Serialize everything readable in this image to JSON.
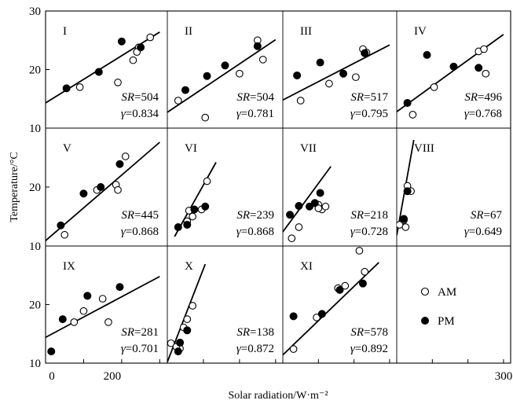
{
  "chart_data": {
    "type": "scatter",
    "xlabel": "Solar radiation/W·m⁻²",
    "ylabel": "Temperature/°C",
    "xlim": [
      0,
      320
    ],
    "ylim": [
      10,
      30
    ],
    "x_ticks": [
      "0",
      "200",
      "300"
    ],
    "legend": {
      "position": "bottom-right panel",
      "entries": [
        {
          "label": "AM",
          "marker": "open circle"
        },
        {
          "label": "PM",
          "marker": "filled circle"
        }
      ]
    },
    "panels": [
      {
        "label": "I",
        "y_ticks": [
          "30",
          "20",
          "10"
        ],
        "sr_key": "SR",
        "sr_value": "504",
        "r_key": "γ",
        "r_value": "0.834",
        "line": [
          [
            0,
            14.3
          ],
          [
            300,
            26.4
          ]
        ],
        "am": [
          [
            90,
            17.0
          ],
          [
            190,
            17.8
          ],
          [
            230,
            21.6
          ],
          [
            245,
            23.8
          ],
          [
            275,
            25.5
          ],
          [
            240,
            23.0
          ]
        ],
        "pm": [
          [
            55,
            16.8
          ],
          [
            140,
            19.6
          ],
          [
            200,
            24.8
          ],
          [
            250,
            23.8
          ]
        ]
      },
      {
        "label": "II",
        "y_ticks": [],
        "sr_key": "SR",
        "sr_value": "504",
        "r_key": "γ",
        "r_value": "0.781",
        "line": [
          [
            0,
            12.7
          ],
          [
            300,
            25.1
          ]
        ],
        "am": [
          [
            30,
            14.7
          ],
          [
            105,
            11.8
          ],
          [
            200,
            19.3
          ],
          [
            250,
            25.0
          ],
          [
            265,
            21.7
          ]
        ],
        "pm": [
          [
            50,
            16.5
          ],
          [
            110,
            18.9
          ],
          [
            160,
            20.7
          ],
          [
            250,
            24.0
          ]
        ]
      },
      {
        "label": "III",
        "y_ticks": [],
        "sr_key": "SR",
        "sr_value": "517",
        "r_key": "γ",
        "r_value": "0.795",
        "line": [
          [
            0,
            14.8
          ],
          [
            300,
            24.2
          ]
        ],
        "am": [
          [
            50,
            14.7
          ],
          [
            130,
            17.6
          ],
          [
            205,
            18.7
          ],
          [
            225,
            23.5
          ],
          [
            235,
            22.9
          ]
        ],
        "pm": [
          [
            40,
            19.0
          ],
          [
            105,
            21.2
          ],
          [
            170,
            19.3
          ],
          [
            230,
            22.8
          ]
        ]
      },
      {
        "label": "IV",
        "y_ticks": [],
        "sr_key": "SR",
        "sr_value": "496",
        "r_key": "γ",
        "r_value": "0.768",
        "line": [
          [
            0,
            12.8
          ],
          [
            300,
            26.0
          ]
        ],
        "am": [
          [
            45,
            12.3
          ],
          [
            105,
            17.0
          ],
          [
            230,
            23.1
          ],
          [
            245,
            23.5
          ],
          [
            250,
            19.3
          ]
        ],
        "pm": [
          [
            30,
            14.3
          ],
          [
            85,
            22.5
          ],
          [
            160,
            20.5
          ],
          [
            230,
            20.3
          ]
        ]
      },
      {
        "label": "V",
        "y_ticks": [
          "20",
          "10"
        ],
        "sr_key": "SR",
        "sr_value": "445",
        "r_key": "γ",
        "r_value": "0.868",
        "line": [
          [
            0,
            10.9
          ],
          [
            300,
            27.6
          ]
        ],
        "am": [
          [
            50,
            11.9
          ],
          [
            135,
            19.5
          ],
          [
            185,
            20.4
          ],
          [
            210,
            25.2
          ],
          [
            190,
            19.5
          ]
        ],
        "pm": [
          [
            40,
            13.5
          ],
          [
            100,
            18.9
          ],
          [
            145,
            20.0
          ],
          [
            195,
            23.9
          ]
        ]
      },
      {
        "label": "VI",
        "y_ticks": [],
        "sr_key": "SR",
        "sr_value": "239",
        "r_key": "γ",
        "r_value": "0.868",
        "line": [
          [
            20,
            11.6
          ],
          [
            135,
            24.2
          ]
        ],
        "am": [
          [
            55,
            14.2
          ],
          [
            60,
            16.0
          ],
          [
            95,
            16.2
          ],
          [
            110,
            21.0
          ],
          [
            70,
            15.0
          ]
        ],
        "pm": [
          [
            30,
            13.2
          ],
          [
            55,
            13.6
          ],
          [
            75,
            16.2
          ],
          [
            105,
            16.7
          ]
        ]
      },
      {
        "label": "VII",
        "y_ticks": [],
        "sr_key": "SR",
        "sr_value": "218",
        "r_key": "γ",
        "r_value": "0.728",
        "line": [
          [
            0,
            12.4
          ],
          [
            135,
            23.5
          ]
        ],
        "am": [
          [
            25,
            11.3
          ],
          [
            45,
            13.2
          ],
          [
            100,
            17.0
          ],
          [
            110,
            16.2
          ],
          [
            120,
            16.7
          ],
          [
            100,
            16.4
          ]
        ],
        "pm": [
          [
            20,
            15.3
          ],
          [
            45,
            16.8
          ],
          [
            75,
            16.7
          ],
          [
            105,
            19.0
          ],
          [
            90,
            17.3
          ]
        ]
      },
      {
        "label": "VIII",
        "y_ticks": [],
        "sr_key": "SR",
        "sr_value": "67",
        "r_key": "γ",
        "r_value": "0.649",
        "line": [
          [
            0,
            11.8
          ],
          [
            48,
            28.0
          ]
        ],
        "am": [
          [
            8,
            13.6
          ],
          [
            20,
            14.4
          ],
          [
            25,
            13.2
          ],
          [
            30,
            20.2
          ],
          [
            40,
            19.3
          ]
        ],
        "pm": [
          [
            20,
            14.6
          ],
          [
            30,
            19.3
          ]
        ]
      },
      {
        "label": "IX",
        "y_ticks": [
          "20",
          "10"
        ],
        "sr_key": "SR",
        "sr_value": "281",
        "r_key": "γ",
        "r_value": "0.701",
        "line": [
          [
            0,
            14.4
          ],
          [
            300,
            24.8
          ]
        ],
        "am": [
          [
            75,
            17.0
          ],
          [
            100,
            18.9
          ],
          [
            150,
            21.0
          ],
          [
            165,
            17.0
          ]
        ],
        "pm": [
          [
            15,
            12.0
          ],
          [
            45,
            17.5
          ],
          [
            110,
            21.5
          ],
          [
            195,
            23.0
          ]
        ]
      },
      {
        "label": "X",
        "y_ticks": [],
        "sr_key": "SR",
        "sr_value": "138",
        "r_key": "γ",
        "r_value": "0.872",
        "line": [
          [
            0,
            10.2
          ],
          [
            105,
            26.9
          ]
        ],
        "am": [
          [
            10,
            13.4
          ],
          [
            35,
            12.5
          ],
          [
            45,
            16.1
          ],
          [
            55,
            17.5
          ],
          [
            70,
            19.8
          ],
          [
            25,
            12.8
          ]
        ],
        "pm": [
          [
            30,
            12.0
          ],
          [
            35,
            13.5
          ],
          [
            55,
            15.6
          ]
        ]
      },
      {
        "label": "XI",
        "y_ticks": [],
        "sr_key": "SR",
        "sr_value": "578",
        "r_key": "γ",
        "r_value": "0.892",
        "line": [
          [
            0,
            11.4
          ],
          [
            270,
            27.2
          ]
        ],
        "am": [
          [
            30,
            12.4
          ],
          [
            95,
            17.8
          ],
          [
            155,
            22.8
          ],
          [
            215,
            29.2
          ],
          [
            230,
            25.6
          ],
          [
            175,
            23.2
          ]
        ],
        "pm": [
          [
            30,
            18.0
          ],
          [
            110,
            18.4
          ],
          [
            160,
            22.5
          ],
          [
            225,
            23.6
          ]
        ]
      }
    ]
  }
}
